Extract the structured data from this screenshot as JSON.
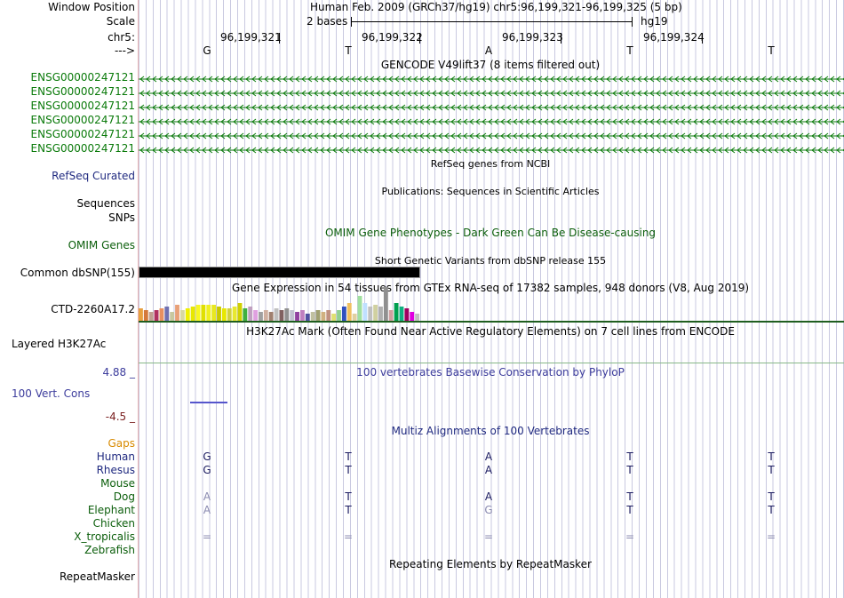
{
  "header": {
    "window_position_label": "Window Position",
    "position_text": "Human Feb. 2009 (GRCh37/hg19)   chr5:96,199,321-96,199,325 (5 bp)",
    "scale_label": "Scale",
    "scale_text": "2 bases",
    "assembly": "hg19",
    "chrom_label": "chr5:",
    "strand_label": "--->",
    "coords": [
      "96,199,321",
      "96,199,322",
      "96,199,323",
      "96,199,324"
    ],
    "bases": [
      "G",
      "T",
      "A",
      "T",
      "T"
    ]
  },
  "gencode": {
    "title": "GENCODE V49lift37 (8 items filtered out)",
    "items": [
      "ENSG00000247121",
      "ENSG00000247121",
      "ENSG00000247121",
      "ENSG00000247121",
      "ENSG00000247121",
      "ENSG00000247121"
    ]
  },
  "refseq": {
    "title": "RefSeq genes from NCBI",
    "label": "RefSeq Curated"
  },
  "publications": {
    "title": "Publications: Sequences in Scientific Articles",
    "label": "Sequences"
  },
  "snps": {
    "label": "SNPs"
  },
  "omim": {
    "title": "OMIM Gene Phenotypes - Dark Green Can Be Disease-causing",
    "label": "OMIM Genes"
  },
  "dbsnp": {
    "title": "Short Genetic Variants from dbSNP release 155",
    "label": "Common dbSNP(155)"
  },
  "gtex": {
    "title": "Gene Expression in 54 tissues from GTEx RNA-seq of 17382 samples, 948 donors (V8, Aug 2019)",
    "label": "CTD-2260A17.2",
    "bar_heights": [
      0.35,
      0.3,
      0.25,
      0.3,
      0.35,
      0.4,
      0.25,
      0.45,
      0.3,
      0.35,
      0.4,
      0.45,
      0.45,
      0.45,
      0.45,
      0.4,
      0.35,
      0.35,
      0.4,
      0.5,
      0.35,
      0.4,
      0.3,
      0.25,
      0.3,
      0.25,
      0.35,
      0.3,
      0.35,
      0.3,
      0.25,
      0.3,
      0.2,
      0.25,
      0.3,
      0.25,
      0.3,
      0.2,
      0.3,
      0.4,
      0.5,
      0.2,
      0.7,
      0.5,
      0.4,
      0.45,
      0.4,
      0.95,
      0.3,
      0.5,
      0.4,
      0.35,
      0.25,
      0.2
    ],
    "bar_colors": [
      "#e8a040",
      "#d4783c",
      "#c0a090",
      "#b03060",
      "#e89060",
      "#7070b0",
      "#c8c8a0",
      "#e8a078",
      "#d8d8a0",
      "#f0f000",
      "#e8e800",
      "#f8f820",
      "#e0e000",
      "#f0f020",
      "#e8e820",
      "#c8c800",
      "#e8e800",
      "#d0d040",
      "#e8e830",
      "#d0d000",
      "#40b040",
      "#c0a0c0",
      "#e0a0e0",
      "#a0a0a0",
      "#d0b0a0",
      "#a08070",
      "#c0c0c0",
      "#806060",
      "#909090",
      "#c0c0d0",
      "#9040a0",
      "#c080c0",
      "#5050a0",
      "#c0c0a0",
      "#a0a070",
      "#d0b080",
      "#c09080",
      "#e0e070",
      "#90d090",
      "#3050c0",
      "#f0c060",
      "#e0d0a0",
      "#a0e0a0",
      "#c0e0ff",
      "#c0c0c0",
      "#d0d0a0",
      "#b0b0b0",
      "#909090",
      "#d0a0a0",
      "#00a050",
      "#10b080",
      "#a00060",
      "#e000e0",
      "#c0c0c0"
    ]
  },
  "h3k27ac": {
    "title": "H3K27Ac Mark (Often Found Near Active Regulatory Elements) on 7 cell lines from ENCODE",
    "label": "Layered H3K27Ac"
  },
  "phylop": {
    "title": "100 vertebrates Basewise Conservation by PhyloP",
    "label": "100 Vert. Cons",
    "max": "4.88 _",
    "min": "-4.5 _"
  },
  "multiz": {
    "title": "Multiz Alignments of 100 Vertebrates",
    "gaps_label": "Gaps",
    "species": [
      {
        "name": "Human",
        "bases": [
          "G",
          "T",
          "A",
          "T",
          "T"
        ]
      },
      {
        "name": "Rhesus",
        "bases": [
          "G",
          "T",
          "A",
          "T",
          "T"
        ]
      },
      {
        "name": "Mouse",
        "bases": [
          "",
          "",
          "",
          "",
          ""
        ]
      },
      {
        "name": "Dog",
        "bases": [
          "A",
          "T",
          "A",
          "T",
          "T"
        ]
      },
      {
        "name": "Elephant",
        "bases": [
          "A",
          "T",
          "G",
          "T",
          "T"
        ]
      },
      {
        "name": "Chicken",
        "bases": [
          "",
          "",
          "",
          "",
          ""
        ]
      },
      {
        "name": "X_tropicalis",
        "bases": [
          "=",
          "=",
          "=",
          "=",
          "="
        ]
      },
      {
        "name": "Zebrafish",
        "bases": [
          "",
          "",
          "",
          "",
          ""
        ]
      }
    ]
  },
  "repeatmasker": {
    "title": "Repeating Elements by RepeatMasker",
    "label": "RepeatMasker"
  },
  "colors": {
    "navy": "#202a80",
    "dark_green": "#0b5e0b",
    "gencode_green": "#0a7a0a",
    "gaps_orange": "#d88a00",
    "bar_black": "#000000"
  }
}
